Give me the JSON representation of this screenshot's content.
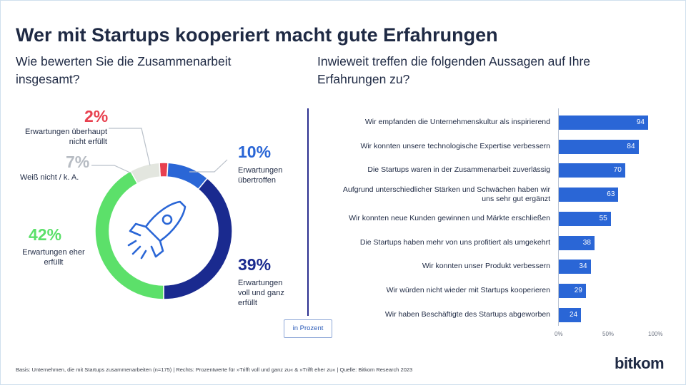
{
  "title": "Wer mit Startups kooperiert macht gute Erfahrungen",
  "left_subtitle": "Wie bewerten Sie die Zusammenarbeit insgesamt?",
  "right_subtitle": "Inwieweit treffen die folgenden Aussagen auf Ihre Erfahrungen zu?",
  "unit_note": "in Prozent",
  "footer": "Basis: Unternehmen, die mit Startups zusammenarbeiten (n=175) | Rechts: Prozentwerte für »Trifft voll und ganz zu« & »Trifft eher zu« | Quelle: Bitkom Research 2023",
  "logo": "bitkom",
  "colors": {
    "dark_blue": "#1a2a8f",
    "mid_blue": "#2a66d6",
    "green": "#5ce06a",
    "light_gray": "#e3e6df",
    "red": "#e8404f"
  },
  "icon": "rocket-icon",
  "chart_data": [
    {
      "type": "pie",
      "variant": "donut",
      "slices": [
        {
          "pct_label": "2%",
          "value": 2,
          "label": "Erwartungen überhaupt nicht erfüllt",
          "color": "#e8404f"
        },
        {
          "pct_label": "10%",
          "value": 10,
          "label": "Erwartungen übertroffen",
          "color": "#2a66d6"
        },
        {
          "pct_label": "39%",
          "value": 39,
          "label": "Erwartungen voll und ganz erfüllt",
          "color": "#1a2a8f"
        },
        {
          "pct_label": "42%",
          "value": 42,
          "label": "Erwartungen eher erfüllt",
          "color": "#5ce06a"
        },
        {
          "pct_label": "7%",
          "value": 7,
          "label": "Weiß nicht / k. A.",
          "color": "#e3e6df"
        }
      ]
    },
    {
      "type": "bar",
      "orientation": "horizontal",
      "categories": [
        "Wir empfanden die Unternehmenskultur als inspirierend",
        "Wir konnten unsere technologische Expertise verbessern",
        "Die Startups waren in der  Zusammenarbeit zuverlässig",
        "Aufgrund unterschiedlicher Stärken und Schwächen haben wir uns sehr gut ergänzt",
        "Wir konnten neue Kunden gewinnen und Märkte erschließen",
        "Die Startups haben mehr von uns profitiert als umgekehrt",
        "Wir konnten unser Produkt verbessern",
        "Wir würden nicht wieder mit Startups kooperieren",
        "Wir haben Beschäftigte des Startups abgeworben"
      ],
      "values": [
        94,
        84,
        70,
        63,
        55,
        38,
        34,
        29,
        24
      ],
      "xlim": [
        0,
        100
      ],
      "ticks": [
        "0%",
        "50%",
        "100%"
      ]
    }
  ]
}
